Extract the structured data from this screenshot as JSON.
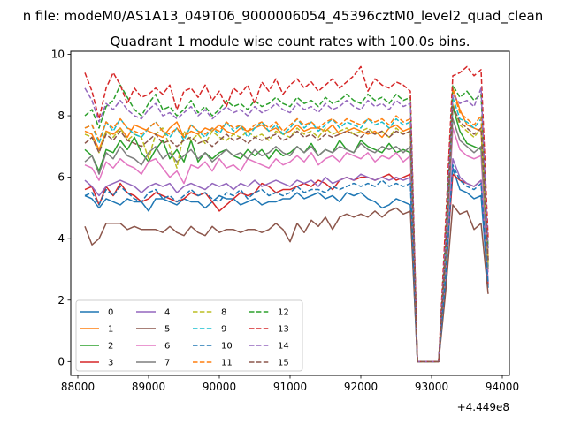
{
  "chart_data": {
    "type": "line",
    "suptitle": "n file: modeM0/AS1A13_049T06_9000006054_45396cztM0_level2_quad_clean",
    "title": "Quadrant 1 module wise count rates with 100.0s bins.",
    "xlabel": "",
    "ylabel": "",
    "x_offset_label": "+4.449e8",
    "xlim": [
      87900,
      94100
    ],
    "ylim": [
      -0.45,
      10.1
    ],
    "xticks": [
      88000,
      89000,
      90000,
      91000,
      92000,
      93000,
      94000
    ],
    "xtick_labels": [
      "88000",
      "89000",
      "90000",
      "91000",
      "92000",
      "93000",
      "94000"
    ],
    "yticks": [
      0,
      2,
      4,
      6,
      8,
      10
    ],
    "ytick_labels": [
      "0",
      "2",
      "4",
      "6",
      "8",
      "10"
    ],
    "grid": false,
    "legend": {
      "location": "lower-left",
      "columns": 4
    },
    "x": [
      88100,
      88200,
      88300,
      88400,
      88500,
      88600,
      88700,
      88800,
      88900,
      89000,
      89100,
      89200,
      89300,
      89400,
      89500,
      89600,
      89700,
      89800,
      89900,
      90000,
      90100,
      90200,
      90300,
      90400,
      90500,
      90600,
      90700,
      90800,
      90900,
      91000,
      91100,
      91200,
      91300,
      91400,
      91500,
      91600,
      91700,
      91800,
      91900,
      92000,
      92100,
      92200,
      92300,
      92400,
      92500,
      92600,
      92700,
      92800,
      92900,
      93000,
      93100,
      93200,
      93300,
      93400,
      93500,
      93600,
      93700,
      93800
    ],
    "series": [
      {
        "name": "0",
        "color": "#1f77b4",
        "dash": false,
        "values": [
          5.4,
          5.3,
          5.0,
          5.3,
          5.2,
          5.1,
          5.3,
          5.2,
          5.2,
          4.9,
          5.3,
          5.3,
          5.2,
          5.1,
          5.3,
          5.2,
          5.2,
          5.0,
          5.2,
          5.4,
          5.3,
          5.3,
          5.1,
          5.2,
          5.3,
          5.1,
          5.2,
          5.2,
          5.3,
          5.3,
          5.5,
          5.3,
          5.4,
          5.5,
          5.3,
          5.4,
          5.2,
          5.5,
          5.4,
          5.5,
          5.3,
          5.2,
          5.0,
          5.1,
          5.3,
          5.2,
          5.1,
          0.0,
          0.0,
          0.0,
          0.0,
          2.7,
          6.3,
          5.6,
          5.5,
          5.3,
          5.4,
          2.4
        ]
      },
      {
        "name": "1",
        "color": "#ff7f0e",
        "dash": false,
        "values": [
          7.5,
          7.4,
          6.9,
          7.5,
          7.4,
          7.6,
          7.3,
          7.7,
          7.6,
          7.5,
          7.4,
          7.3,
          7.6,
          7.8,
          7.3,
          7.5,
          7.4,
          7.6,
          7.5,
          7.7,
          7.5,
          7.4,
          7.6,
          7.5,
          7.6,
          7.7,
          7.5,
          7.6,
          7.4,
          7.5,
          7.7,
          7.5,
          7.6,
          7.6,
          7.5,
          7.7,
          7.4,
          7.5,
          7.6,
          7.5,
          7.4,
          7.5,
          7.3,
          7.6,
          7.7,
          7.5,
          7.6,
          0.0,
          0.0,
          0.0,
          0.0,
          3.8,
          8.9,
          8.2,
          7.7,
          7.6,
          7.5,
          3.3
        ]
      },
      {
        "name": "2",
        "color": "#2ca02c",
        "dash": false,
        "values": [
          6.9,
          6.7,
          6.2,
          6.9,
          6.8,
          7.2,
          6.9,
          7.3,
          6.8,
          6.5,
          6.9,
          7.2,
          6.6,
          6.9,
          6.5,
          7.2,
          6.5,
          6.8,
          6.6,
          6.8,
          6.9,
          6.7,
          6.6,
          6.9,
          6.7,
          6.9,
          6.6,
          6.9,
          6.7,
          6.8,
          7.0,
          6.8,
          7.1,
          6.7,
          6.9,
          6.8,
          7.2,
          6.9,
          6.8,
          7.2,
          7.0,
          6.9,
          6.8,
          7.1,
          6.8,
          6.9,
          6.8,
          0.0,
          0.0,
          0.0,
          0.0,
          3.4,
          8.3,
          7.5,
          7.1,
          7.0,
          6.9,
          3.1
        ]
      },
      {
        "name": "3",
        "color": "#d62728",
        "dash": false,
        "values": [
          5.6,
          5.7,
          5.1,
          5.7,
          5.4,
          5.8,
          5.5,
          5.4,
          5.2,
          5.3,
          5.5,
          5.4,
          5.3,
          5.2,
          5.3,
          5.5,
          5.4,
          5.5,
          5.2,
          4.9,
          5.1,
          5.3,
          5.5,
          5.4,
          5.5,
          5.8,
          5.7,
          5.5,
          5.6,
          5.6,
          5.7,
          5.8,
          5.7,
          5.9,
          5.8,
          5.6,
          5.9,
          6.0,
          5.9,
          6.0,
          6.0,
          5.9,
          6.0,
          6.1,
          5.9,
          6.0,
          6.1,
          0.0,
          0.0,
          0.0,
          0.0,
          2.9,
          6.1,
          5.9,
          5.8,
          5.7,
          5.9,
          2.5
        ]
      },
      {
        "name": "4",
        "color": "#9467bd",
        "dash": false,
        "values": [
          5.9,
          5.7,
          5.4,
          5.7,
          5.8,
          5.9,
          5.8,
          5.7,
          5.5,
          5.7,
          5.8,
          5.7,
          5.8,
          5.5,
          5.7,
          5.8,
          5.7,
          5.6,
          5.8,
          5.7,
          5.8,
          5.6,
          5.8,
          5.7,
          5.9,
          5.7,
          5.8,
          5.9,
          5.8,
          5.7,
          5.9,
          5.8,
          5.9,
          5.7,
          6.0,
          5.8,
          5.9,
          6.0,
          5.9,
          6.1,
          6.0,
          5.9,
          6.0,
          5.9,
          6.0,
          5.9,
          6.0,
          0.0,
          0.0,
          0.0,
          0.0,
          2.8,
          6.6,
          6.0,
          5.8,
          5.7,
          5.9,
          2.6
        ]
      },
      {
        "name": "5",
        "color": "#8c564b",
        "dash": false,
        "values": [
          4.4,
          3.8,
          4.0,
          4.5,
          4.5,
          4.5,
          4.3,
          4.4,
          4.3,
          4.3,
          4.3,
          4.2,
          4.4,
          4.2,
          4.1,
          4.4,
          4.2,
          4.1,
          4.4,
          4.2,
          4.3,
          4.3,
          4.2,
          4.3,
          4.3,
          4.2,
          4.3,
          4.5,
          4.3,
          3.9,
          4.5,
          4.2,
          4.6,
          4.4,
          4.7,
          4.3,
          4.7,
          4.8,
          4.7,
          4.8,
          4.7,
          4.9,
          4.7,
          4.9,
          5.0,
          4.8,
          4.9,
          0.0,
          0.0,
          0.0,
          0.0,
          2.3,
          5.1,
          4.8,
          4.9,
          4.3,
          4.5,
          2.2
        ]
      },
      {
        "name": "6",
        "color": "#e377c2",
        "dash": false,
        "values": [
          6.4,
          6.3,
          5.9,
          6.5,
          6.3,
          6.6,
          6.4,
          6.3,
          6.1,
          6.5,
          6.6,
          6.3,
          6.0,
          6.2,
          5.8,
          6.4,
          6.3,
          6.5,
          6.2,
          6.6,
          6.3,
          6.4,
          6.2,
          6.6,
          6.5,
          6.4,
          6.3,
          6.6,
          6.4,
          6.5,
          6.7,
          6.5,
          6.8,
          6.4,
          6.6,
          6.7,
          6.5,
          6.8,
          6.7,
          6.6,
          6.8,
          6.5,
          6.7,
          6.6,
          6.8,
          6.5,
          6.7,
          0.0,
          0.0,
          0.0,
          0.0,
          3.1,
          7.6,
          6.9,
          6.7,
          6.6,
          6.7,
          2.9
        ]
      },
      {
        "name": "7",
        "color": "#7f7f7f",
        "dash": false,
        "values": [
          6.5,
          6.7,
          6.1,
          6.8,
          6.6,
          7.0,
          6.7,
          6.6,
          6.4,
          6.8,
          7.0,
          6.6,
          6.8,
          6.5,
          6.7,
          6.9,
          6.6,
          6.8,
          6.5,
          6.7,
          6.9,
          6.7,
          6.8,
          6.6,
          6.9,
          6.7,
          6.8,
          7.0,
          6.8,
          6.7,
          7.0,
          6.8,
          7.0,
          6.7,
          6.9,
          6.8,
          7.0,
          6.9,
          6.8,
          7.1,
          6.9,
          6.8,
          7.0,
          6.9,
          7.0,
          6.8,
          7.0,
          0.0,
          0.0,
          0.0,
          0.0,
          3.3,
          7.9,
          7.2,
          7.0,
          6.8,
          7.0,
          3.0
        ]
      },
      {
        "name": "8",
        "color": "#bcbd22",
        "dash": true,
        "values": [
          7.4,
          7.3,
          6.8,
          7.5,
          7.3,
          7.6,
          7.2,
          7.4,
          7.3,
          6.6,
          7.4,
          7.6,
          7.0,
          6.3,
          7.5,
          7.2,
          7.4,
          7.1,
          7.5,
          7.3,
          7.2,
          7.4,
          7.3,
          7.5,
          7.3,
          7.4,
          7.2,
          7.5,
          7.4,
          7.3,
          7.6,
          7.4,
          7.5,
          7.3,
          7.6,
          7.4,
          7.5,
          7.6,
          7.4,
          7.5,
          7.6,
          7.4,
          7.5,
          7.3,
          7.6,
          7.4,
          7.5,
          0.0,
          0.0,
          0.0,
          0.0,
          3.6,
          8.4,
          7.7,
          7.5,
          7.3,
          7.6,
          3.2
        ]
      },
      {
        "name": "9",
        "color": "#17becf",
        "dash": true,
        "values": [
          7.6,
          7.7,
          7.1,
          7.8,
          7.5,
          7.9,
          7.6,
          7.4,
          7.3,
          7.6,
          7.8,
          7.5,
          7.3,
          7.6,
          7.2,
          7.7,
          7.5,
          7.3,
          7.6,
          7.4,
          7.8,
          7.5,
          7.7,
          7.3,
          7.6,
          7.8,
          7.5,
          7.7,
          7.4,
          7.6,
          7.9,
          7.6,
          7.8,
          7.5,
          7.7,
          7.9,
          7.6,
          7.8,
          7.7,
          7.6,
          7.9,
          7.7,
          7.8,
          7.6,
          7.9,
          7.7,
          7.8,
          0.0,
          0.0,
          0.0,
          0.0,
          3.7,
          8.6,
          7.9,
          7.8,
          7.6,
          7.9,
          3.3
        ]
      },
      {
        "name": "10",
        "color": "#1f77b4",
        "dash": true,
        "values": [
          5.4,
          5.5,
          5.1,
          5.6,
          5.4,
          5.7,
          5.5,
          5.3,
          5.2,
          5.5,
          5.6,
          5.3,
          5.4,
          5.2,
          5.4,
          5.6,
          5.4,
          5.5,
          5.3,
          5.2,
          5.5,
          5.4,
          5.6,
          5.3,
          5.5,
          5.6,
          5.4,
          5.5,
          5.4,
          5.5,
          5.7,
          5.5,
          5.6,
          5.6,
          5.5,
          5.7,
          5.6,
          5.7,
          5.8,
          5.7,
          5.8,
          5.7,
          5.9,
          5.7,
          5.8,
          5.7,
          5.8,
          0.0,
          0.0,
          0.0,
          0.0,
          2.8,
          6.4,
          5.9,
          5.7,
          5.6,
          5.8,
          2.5
        ]
      },
      {
        "name": "11",
        "color": "#ff7f0e",
        "dash": true,
        "values": [
          7.6,
          7.7,
          7.2,
          7.8,
          7.6,
          7.9,
          7.6,
          7.5,
          7.4,
          7.6,
          7.8,
          7.5,
          7.4,
          7.6,
          7.3,
          7.7,
          7.5,
          7.4,
          7.6,
          7.5,
          7.8,
          7.6,
          7.7,
          7.5,
          7.7,
          7.8,
          7.6,
          7.8,
          7.5,
          7.7,
          7.9,
          7.7,
          7.8,
          7.6,
          7.8,
          7.9,
          7.7,
          7.9,
          7.8,
          7.7,
          7.9,
          7.8,
          7.9,
          7.7,
          8.0,
          7.8,
          7.9,
          0.0,
          0.0,
          0.0,
          0.0,
          3.8,
          8.8,
          8.1,
          7.9,
          7.7,
          8.0,
          3.4
        ]
      },
      {
        "name": "12",
        "color": "#2ca02c",
        "dash": true,
        "values": [
          8.0,
          8.2,
          7.6,
          8.3,
          8.5,
          9.0,
          8.6,
          8.2,
          8.0,
          8.4,
          8.7,
          8.2,
          8.3,
          8.0,
          8.2,
          8.5,
          8.1,
          8.3,
          8.0,
          8.2,
          8.5,
          8.3,
          8.4,
          8.2,
          8.5,
          8.3,
          8.4,
          8.6,
          8.4,
          8.3,
          8.6,
          8.4,
          8.5,
          8.3,
          8.6,
          8.4,
          8.5,
          8.7,
          8.5,
          8.4,
          8.7,
          8.5,
          8.6,
          8.4,
          8.7,
          8.5,
          8.6,
          0.0,
          0.0,
          0.0,
          0.0,
          4.2,
          9.0,
          8.6,
          8.8,
          8.5,
          8.7,
          3.7
        ]
      },
      {
        "name": "13",
        "color": "#d62728",
        "dash": true,
        "values": [
          9.4,
          8.8,
          7.9,
          8.9,
          9.4,
          9.0,
          8.4,
          8.9,
          8.6,
          8.7,
          8.9,
          8.7,
          9.0,
          8.2,
          8.8,
          8.9,
          8.6,
          9.0,
          8.5,
          8.8,
          8.3,
          8.9,
          8.7,
          9.0,
          8.4,
          9.1,
          8.8,
          9.2,
          8.7,
          9.0,
          9.2,
          8.9,
          9.1,
          8.8,
          9.0,
          9.2,
          8.9,
          9.1,
          9.3,
          9.6,
          8.8,
          9.2,
          9.0,
          8.9,
          9.1,
          9.0,
          8.8,
          0.0,
          0.0,
          0.0,
          0.0,
          4.6,
          9.3,
          9.4,
          9.6,
          9.3,
          9.5,
          4.0
        ]
      },
      {
        "name": "14",
        "color": "#9467bd",
        "dash": true,
        "values": [
          8.9,
          8.5,
          7.8,
          8.4,
          8.2,
          8.5,
          8.2,
          8.0,
          7.9,
          8.2,
          8.4,
          8.0,
          8.1,
          7.9,
          8.1,
          8.3,
          8.0,
          8.2,
          7.9,
          8.1,
          8.3,
          8.1,
          8.2,
          8.0,
          8.3,
          8.1,
          8.2,
          8.4,
          8.2,
          8.1,
          8.4,
          8.2,
          8.3,
          8.1,
          8.4,
          8.2,
          8.3,
          8.5,
          8.3,
          8.2,
          8.5,
          8.3,
          8.4,
          8.2,
          8.5,
          8.3,
          8.4,
          0.0,
          0.0,
          0.0,
          0.0,
          4.0,
          8.7,
          8.4,
          8.5,
          8.3,
          8.9,
          3.6
        ]
      },
      {
        "name": "15",
        "color": "#8c564b",
        "dash": true,
        "values": [
          7.1,
          7.3,
          6.8,
          7.4,
          7.2,
          7.5,
          7.2,
          7.1,
          7.0,
          7.2,
          7.4,
          7.1,
          7.2,
          7.0,
          7.2,
          7.3,
          7.1,
          7.2,
          7.0,
          7.2,
          7.4,
          7.2,
          7.3,
          7.1,
          7.3,
          7.2,
          7.3,
          7.4,
          7.2,
          7.3,
          7.5,
          7.3,
          7.4,
          7.2,
          7.4,
          7.3,
          7.4,
          7.5,
          7.4,
          7.3,
          7.5,
          7.4,
          7.5,
          7.3,
          7.5,
          7.4,
          7.5,
          0.0,
          0.0,
          0.0,
          0.0,
          3.6,
          8.3,
          7.8,
          7.6,
          7.4,
          7.6,
          3.3
        ]
      }
    ]
  }
}
